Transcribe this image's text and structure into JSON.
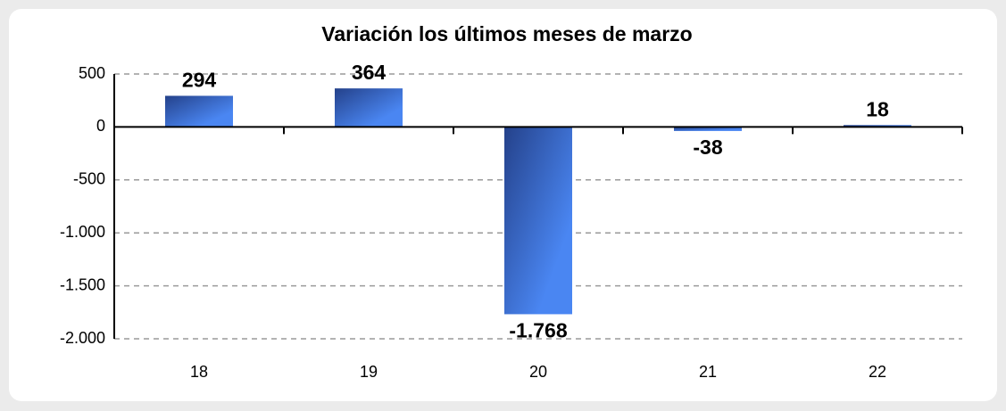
{
  "chart_data": {
    "type": "bar",
    "title": "Variación los últimos meses de marzo",
    "categories": [
      "18",
      "19",
      "20",
      "21",
      "22"
    ],
    "values": [
      294,
      364,
      -1768,
      -38,
      18
    ],
    "value_labels": [
      "294",
      "364",
      "-1.768",
      "-38",
      "18"
    ],
    "color": "#4a86f2",
    "ylim": [
      -2000,
      500
    ],
    "yticks": [
      {
        "value": -2000,
        "label": "-2.000"
      },
      {
        "value": -1500,
        "label": "-1.500"
      },
      {
        "value": -1000,
        "label": "-1.000"
      },
      -500,
      0,
      500
    ],
    "grid": true
  }
}
